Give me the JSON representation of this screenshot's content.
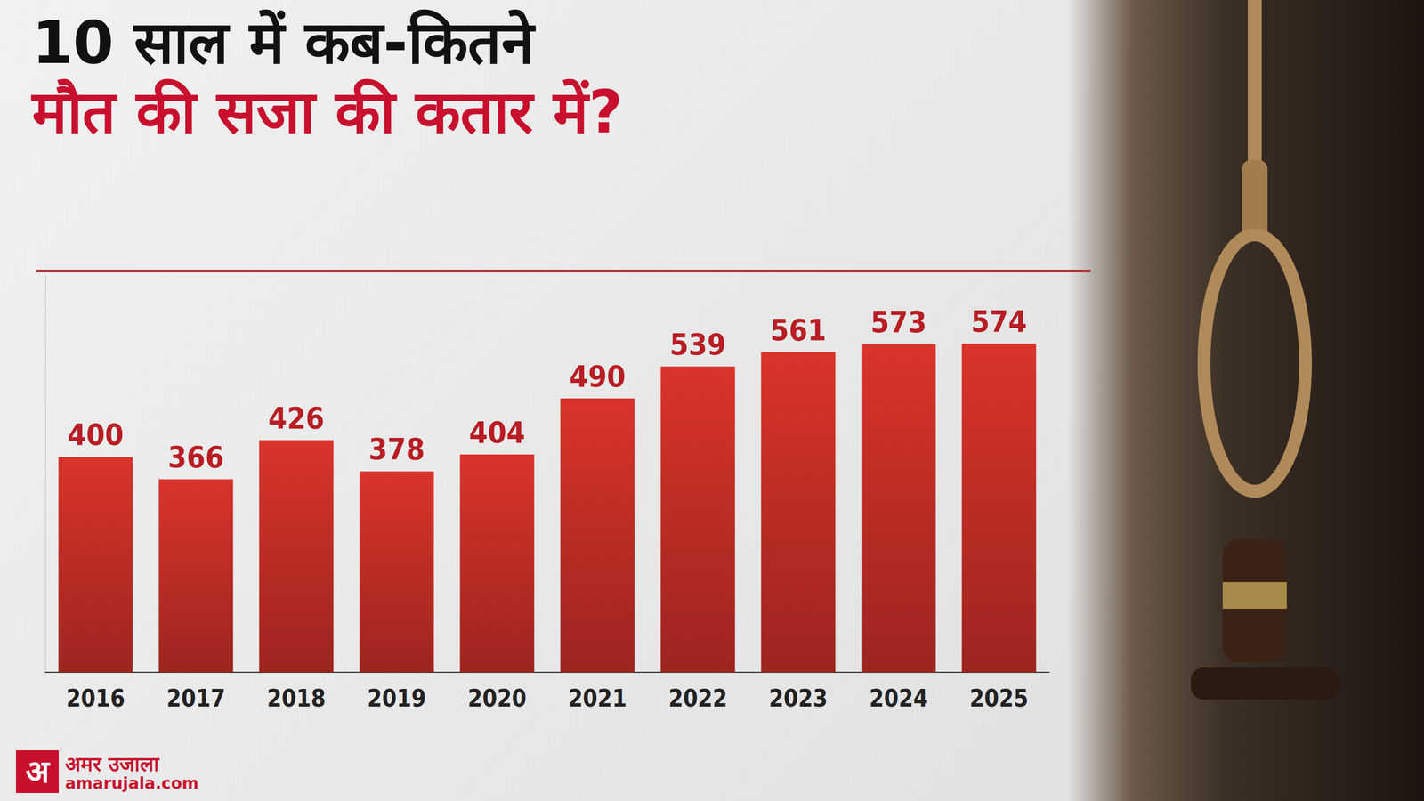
{
  "chart_data": {
    "type": "bar",
    "title": "10 साल में कब-कितने",
    "subtitle": "मौत की सजा की कतार में?",
    "categories": [
      "2016",
      "2017",
      "2018",
      "2019",
      "2020",
      "2021",
      "2022",
      "2023",
      "2024",
      "2025"
    ],
    "values": [
      400,
      366,
      426,
      378,
      404,
      490,
      539,
      561,
      573,
      574
    ],
    "color": "#d9342b",
    "ylim": [
      70,
      680
    ],
    "grid": false,
    "data_labels": true,
    "tick_labels": "x"
  },
  "logo": {
    "mark": "अ",
    "name": "अमर उजाला",
    "site": "amarujala.com"
  }
}
